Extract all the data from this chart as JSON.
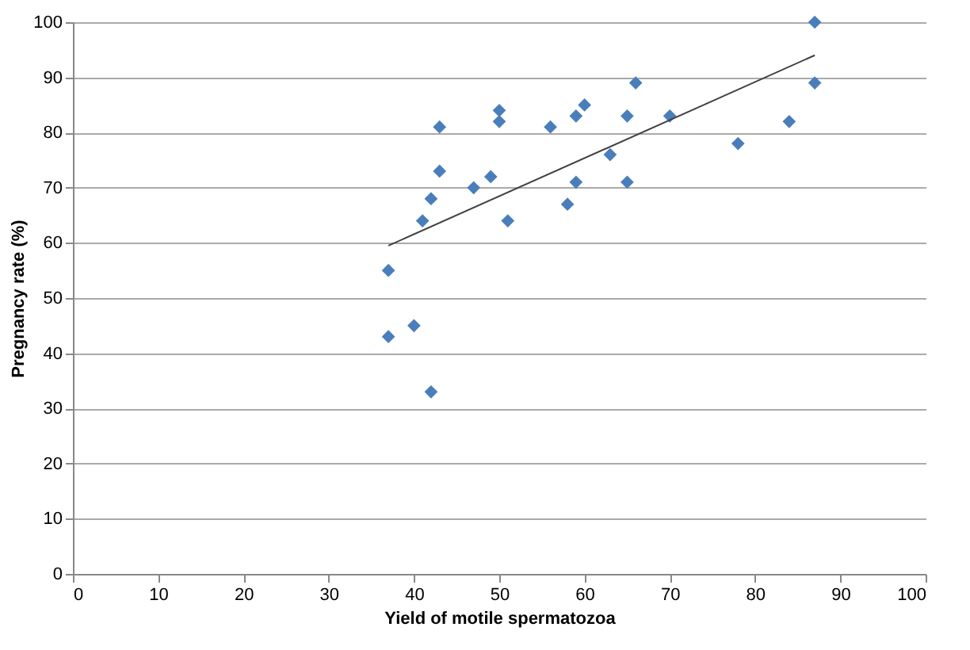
{
  "chart_data": {
    "type": "scatter",
    "xlabel": "Yield of motile spermatozoa",
    "ylabel": "Pregnancy rate  (%)",
    "xlim": [
      0,
      100
    ],
    "xticks": [
      0,
      10,
      20,
      30,
      40,
      50,
      60,
      70,
      80,
      90,
      100
    ],
    "ylim": [
      0,
      100
    ],
    "yticks": [
      0,
      10,
      20,
      30,
      40,
      50,
      60,
      70,
      80,
      90,
      100
    ],
    "grid": "y",
    "series": [
      {
        "color": "#4a7ebb",
        "marker": "diamond",
        "x": [
          37,
          37,
          40,
          42,
          41,
          42,
          43,
          43,
          47,
          49,
          50,
          50,
          51,
          56,
          58,
          59,
          59,
          60,
          63,
          65,
          65,
          66,
          70,
          78,
          84,
          87,
          87
        ],
        "values": [
          55,
          43,
          45,
          33,
          64,
          68,
          73,
          81,
          70,
          72,
          84,
          82,
          64,
          81,
          67,
          71,
          83,
          85,
          76,
          83,
          71,
          89,
          83,
          78,
          82,
          100,
          89
        ]
      },
      {
        "type": "line",
        "color": "#404040",
        "line_style": "solid",
        "marker": "none",
        "x": [
          37,
          87
        ],
        "values": [
          59.5,
          94
        ]
      }
    ]
  }
}
